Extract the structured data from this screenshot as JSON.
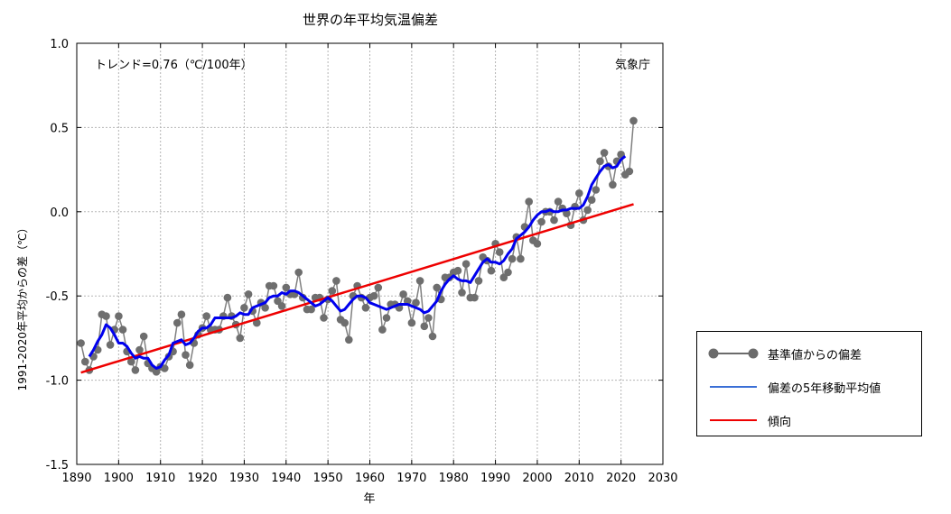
{
  "chart_data": {
    "type": "line",
    "title": "世界の年平均気温偏差",
    "xlabel": "年",
    "ylabel": "1991-2020年平均からの差（℃）",
    "xlim": [
      1890,
      2030
    ],
    "ylim": [
      -1.5,
      1.0
    ],
    "xticks": [
      1890,
      1900,
      1910,
      1920,
      1930,
      1940,
      1950,
      1960,
      1970,
      1980,
      1990,
      2000,
      2010,
      2020,
      2030
    ],
    "xtick_labels": [
      "1890",
      "1900",
      "1910",
      "1920",
      "1930",
      "1940",
      "1950",
      "1960",
      "1970",
      "1980",
      "1990",
      "2000",
      "2010",
      "2020",
      "2030"
    ],
    "yticks": [
      -1.5,
      -1.0,
      -0.5,
      0.0,
      0.5,
      1.0
    ],
    "ytick_labels": [
      "-1.5",
      "-1.0",
      "-0.5",
      "0.0",
      "0.5",
      "1.0"
    ],
    "grid": true,
    "annotations": {
      "trend": "トレンド=0.76（℃/100年）",
      "source": "気象庁"
    },
    "series": [
      {
        "name": "基準値からの偏差",
        "style": "line-markers",
        "color": "#808080",
        "x": [
          1891,
          1892,
          1893,
          1894,
          1895,
          1896,
          1897,
          1898,
          1899,
          1900,
          1901,
          1902,
          1903,
          1904,
          1905,
          1906,
          1907,
          1908,
          1909,
          1910,
          1911,
          1912,
          1913,
          1914,
          1915,
          1916,
          1917,
          1918,
          1919,
          1920,
          1921,
          1922,
          1923,
          1924,
          1925,
          1926,
          1927,
          1928,
          1929,
          1930,
          1931,
          1932,
          1933,
          1934,
          1935,
          1936,
          1937,
          1938,
          1939,
          1940,
          1941,
          1942,
          1943,
          1944,
          1945,
          1946,
          1947,
          1948,
          1949,
          1950,
          1951,
          1952,
          1953,
          1954,
          1955,
          1956,
          1957,
          1958,
          1959,
          1960,
          1961,
          1962,
          1963,
          1964,
          1965,
          1966,
          1967,
          1968,
          1969,
          1970,
          1971,
          1972,
          1973,
          1974,
          1975,
          1976,
          1977,
          1978,
          1979,
          1980,
          1981,
          1982,
          1983,
          1984,
          1985,
          1986,
          1987,
          1988,
          1989,
          1990,
          1991,
          1992,
          1993,
          1994,
          1995,
          1996,
          1997,
          1998,
          1999,
          2000,
          2001,
          2002,
          2003,
          2004,
          2005,
          2006,
          2007,
          2008,
          2009,
          2010,
          2011,
          2012,
          2013,
          2014,
          2015,
          2016,
          2017,
          2018,
          2019,
          2020,
          2021,
          2022,
          2023
        ],
        "values": [
          -0.78,
          -0.89,
          -0.94,
          -0.86,
          -0.82,
          -0.61,
          -0.62,
          -0.79,
          -0.7,
          -0.62,
          -0.7,
          -0.83,
          -0.89,
          -0.94,
          -0.82,
          -0.74,
          -0.9,
          -0.93,
          -0.95,
          -0.92,
          -0.93,
          -0.86,
          -0.83,
          -0.66,
          -0.61,
          -0.85,
          -0.91,
          -0.78,
          -0.73,
          -0.69,
          -0.62,
          -0.7,
          -0.7,
          -0.7,
          -0.62,
          -0.51,
          -0.62,
          -0.67,
          -0.75,
          -0.57,
          -0.49,
          -0.59,
          -0.66,
          -0.54,
          -0.57,
          -0.44,
          -0.44,
          -0.53,
          -0.56,
          -0.45,
          -0.49,
          -0.49,
          -0.36,
          -0.51,
          -0.58,
          -0.58,
          -0.51,
          -0.51,
          -0.63,
          -0.52,
          -0.47,
          -0.41,
          -0.64,
          -0.66,
          -0.76,
          -0.5,
          -0.44,
          -0.51,
          -0.57,
          -0.51,
          -0.5,
          -0.45,
          -0.7,
          -0.63,
          -0.55,
          -0.55,
          -0.57,
          -0.49,
          -0.53,
          -0.66,
          -0.54,
          -0.41,
          -0.68,
          -0.63,
          -0.74,
          -0.45,
          -0.52,
          -0.39,
          -0.39,
          -0.36,
          -0.35,
          -0.48,
          -0.31,
          -0.51,
          -0.51,
          -0.41,
          -0.27,
          -0.29,
          -0.35,
          -0.19,
          -0.24,
          -0.39,
          -0.36,
          -0.28,
          -0.15,
          -0.28,
          -0.09,
          0.06,
          -0.17,
          -0.19,
          -0.06,
          0.0,
          0.0,
          -0.05,
          0.06,
          0.02,
          -0.01,
          -0.08,
          0.03,
          0.11,
          -0.05,
          0.01,
          0.07,
          0.13,
          0.3,
          0.35,
          0.27,
          0.16,
          0.3,
          0.34,
          0.22,
          0.24,
          0.54
        ]
      },
      {
        "name": "偏差の5年移動平均値",
        "style": "line",
        "color": "#0000ee",
        "x": [
          1893,
          1894,
          1895,
          1896,
          1897,
          1898,
          1899,
          1900,
          1901,
          1902,
          1903,
          1904,
          1905,
          1906,
          1907,
          1908,
          1909,
          1910,
          1911,
          1912,
          1913,
          1914,
          1915,
          1916,
          1917,
          1918,
          1919,
          1920,
          1921,
          1922,
          1923,
          1924,
          1925,
          1926,
          1927,
          1928,
          1929,
          1930,
          1931,
          1932,
          1933,
          1934,
          1935,
          1936,
          1937,
          1938,
          1939,
          1940,
          1941,
          1942,
          1943,
          1944,
          1945,
          1946,
          1947,
          1948,
          1949,
          1950,
          1951,
          1952,
          1953,
          1954,
          1955,
          1956,
          1957,
          1958,
          1959,
          1960,
          1961,
          1962,
          1963,
          1964,
          1965,
          1966,
          1967,
          1968,
          1969,
          1970,
          1971,
          1972,
          1973,
          1974,
          1975,
          1976,
          1977,
          1978,
          1979,
          1980,
          1981,
          1982,
          1983,
          1984,
          1985,
          1986,
          1987,
          1988,
          1989,
          1990,
          1991,
          1992,
          1993,
          1994,
          1995,
          1996,
          1997,
          1998,
          1999,
          2000,
          2001,
          2002,
          2003,
          2004,
          2005,
          2006,
          2007,
          2008,
          2009,
          2010,
          2011,
          2012,
          2013,
          2014,
          2015,
          2016,
          2017,
          2018,
          2019,
          2020,
          2021
        ],
        "values": [
          -0.86,
          -0.82,
          -0.77,
          -0.73,
          -0.67,
          -0.69,
          -0.73,
          -0.78,
          -0.78,
          -0.8,
          -0.84,
          -0.87,
          -0.86,
          -0.87,
          -0.87,
          -0.91,
          -0.93,
          -0.92,
          -0.88,
          -0.85,
          -0.78,
          -0.77,
          -0.76,
          -0.79,
          -0.78,
          -0.75,
          -0.71,
          -0.69,
          -0.69,
          -0.67,
          -0.63,
          -0.63,
          -0.63,
          -0.63,
          -0.63,
          -0.62,
          -0.6,
          -0.61,
          -0.61,
          -0.57,
          -0.56,
          -0.55,
          -0.54,
          -0.51,
          -0.5,
          -0.5,
          -0.48,
          -0.49,
          -0.47,
          -0.47,
          -0.48,
          -0.5,
          -0.52,
          -0.54,
          -0.56,
          -0.55,
          -0.53,
          -0.51,
          -0.53,
          -0.56,
          -0.59,
          -0.58,
          -0.55,
          -0.52,
          -0.5,
          -0.5,
          -0.51,
          -0.54,
          -0.55,
          -0.56,
          -0.57,
          -0.58,
          -0.57,
          -0.56,
          -0.55,
          -0.55,
          -0.55,
          -0.56,
          -0.57,
          -0.58,
          -0.6,
          -0.59,
          -0.56,
          -0.53,
          -0.47,
          -0.43,
          -0.4,
          -0.38,
          -0.4,
          -0.41,
          -0.41,
          -0.42,
          -0.38,
          -0.34,
          -0.3,
          -0.28,
          -0.3,
          -0.3,
          -0.31,
          -0.29,
          -0.25,
          -0.22,
          -0.16,
          -0.14,
          -0.12,
          -0.09,
          -0.05,
          -0.02,
          0.0,
          0.0,
          0.01,
          0.0,
          0.0,
          0.01,
          0.01,
          0.02,
          0.02,
          0.02,
          0.04,
          0.09,
          0.16,
          0.2,
          0.24,
          0.27,
          0.28,
          0.26,
          0.27,
          0.31,
          0.33
        ]
      },
      {
        "name": "傾向",
        "style": "line",
        "color": "#ee0000",
        "x": [
          1891,
          2023
        ],
        "values": [
          -0.955,
          0.045
        ]
      }
    ]
  }
}
